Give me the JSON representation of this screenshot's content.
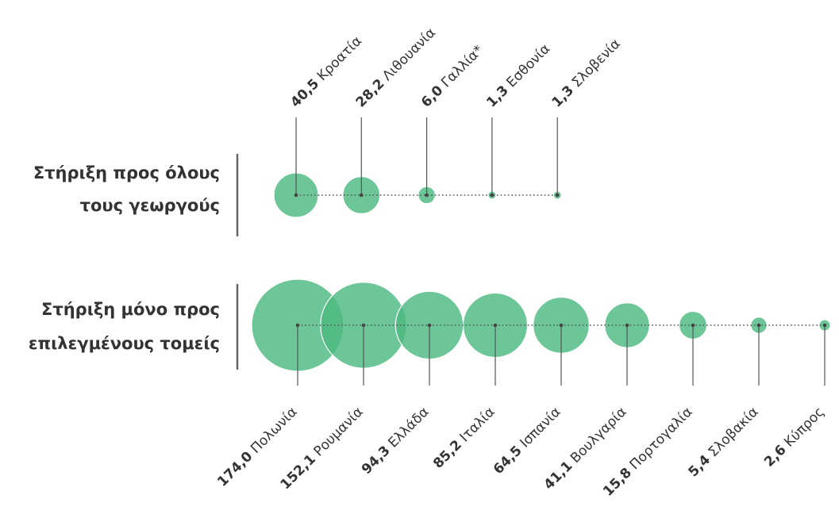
{
  "chart_data": {
    "type": "bubble",
    "value_format": "comma-decimal",
    "colors": {
      "bubble": "#4dba80",
      "line": "#555555",
      "text": "#333333"
    },
    "groups": [
      {
        "label_lines": [
          "Στήριξη προς όλους",
          "τους γεωργούς"
        ],
        "points": [
          {
            "country": "Κροατία",
            "value": 40.5,
            "value_label": "40,5"
          },
          {
            "country": "Λιθουανία",
            "value": 28.2,
            "value_label": "28,2"
          },
          {
            "country": "Γαλλία*",
            "value": 6.0,
            "value_label": "6,0"
          },
          {
            "country": "Εσθονία",
            "value": 1.3,
            "value_label": "1,3"
          },
          {
            "country": "Σλοβενία",
            "value": 1.3,
            "value_label": "1,3"
          }
        ]
      },
      {
        "label_lines": [
          "Στήριξη μόνο προς",
          "επιλεγμένους τομείς"
        ],
        "points": [
          {
            "country": "Πολωνία",
            "value": 174.0,
            "value_label": "174,0"
          },
          {
            "country": "Ρουμανία",
            "value": 152.1,
            "value_label": "152,1"
          },
          {
            "country": "Ελλάδα",
            "value": 94.3,
            "value_label": "94,3"
          },
          {
            "country": "Ιταλία",
            "value": 85.2,
            "value_label": "85,2"
          },
          {
            "country": "Ισπανία",
            "value": 64.5,
            "value_label": "64,5"
          },
          {
            "country": "Βουλγαρία",
            "value": 41.1,
            "value_label": "41,1"
          },
          {
            "country": "Πορτογαλία",
            "value": 15.8,
            "value_label": "15,8"
          },
          {
            "country": "Σλοβακία",
            "value": 5.4,
            "value_label": "5,4"
          },
          {
            "country": "Κύπρος",
            "value": 2.6,
            "value_label": "2,6"
          }
        ]
      }
    ]
  }
}
